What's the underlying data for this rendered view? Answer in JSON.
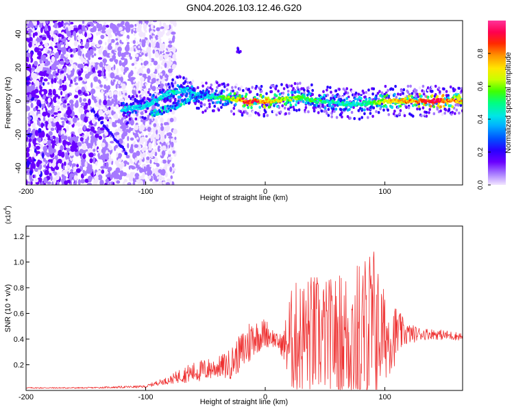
{
  "chart_data": [
    {
      "type": "heatmap",
      "title": "GN04.2026.103.12.46.G20",
      "xlabel": "Height of straight line (km)",
      "ylabel": "Frequency (Hz)",
      "xlim": [
        -200,
        165
      ],
      "ylim": [
        -50,
        48
      ],
      "xticks": [
        -200,
        -100,
        0,
        100
      ],
      "yticks": [
        -40,
        -20,
        0,
        20,
        40
      ],
      "xtick_labels": [
        "-200",
        "-100",
        "0",
        "100"
      ],
      "ytick_labels": [
        "-40",
        "-20",
        "0",
        "20",
        "40"
      ],
      "colorbar": {
        "label": "Normalized spectral amplitude",
        "range": [
          0,
          1
        ],
        "ticks": [
          0,
          0.2,
          0.4,
          0.6,
          0.8
        ],
        "tick_labels": [
          "0.0",
          "0.2",
          "0.4",
          "0.6",
          "0.8"
        ],
        "colors": [
          "#f2e6ff",
          "#a679ff",
          "#6a00ff",
          "#2a00ff",
          "#0050ff",
          "#00b0ff",
          "#00e6e6",
          "#00ff80",
          "#40ff00",
          "#c8ff00",
          "#ffe600",
          "#ff9000",
          "#ff2a00",
          "#ff0050",
          "#ff3399"
        ]
      },
      "ridge": {
        "x": [
          -120,
          -100,
          -80,
          -65,
          -55,
          -45,
          -35,
          -25,
          -15,
          0,
          15,
          30,
          45,
          60,
          75,
          90,
          100,
          120,
          140,
          165
        ],
        "y": [
          -5,
          -3,
          5,
          7,
          2,
          3,
          2,
          1,
          0,
          0,
          1,
          2,
          0,
          -1,
          -2,
          -1,
          0,
          0,
          0,
          0
        ],
        "amplitude": [
          0.45,
          0.45,
          0.5,
          0.45,
          0.4,
          0.5,
          0.6,
          0.75,
          0.95,
          0.85,
          0.7,
          0.6,
          0.55,
          0.5,
          0.5,
          0.6,
          0.75,
          0.85,
          1.0,
          0.8
        ]
      },
      "secondary_ridge": {
        "x": [
          -95,
          -80,
          -65,
          -50
        ],
        "y": [
          -8,
          -4,
          0,
          5
        ]
      },
      "blip": {
        "x": -22,
        "y": 30
      }
    },
    {
      "type": "line",
      "xlabel": "Height of straight line (km)",
      "ylabel": "SNR (10 * v/v)",
      "multiplier_label": "(x10",
      "multiplier_exponent": "4",
      "xlim": [
        -200,
        165
      ],
      "ylim": [
        0,
        1.28
      ],
      "xticks": [
        -200,
        -100,
        0,
        100
      ],
      "yticks": [
        0.2,
        0.4,
        0.6,
        0.8,
        1.0,
        1.2
      ],
      "xtick_labels": [
        "-200",
        "-100",
        "0",
        "100"
      ],
      "ytick_labels": [
        "0.2",
        "0.4",
        "0.6",
        "0.8",
        "1.0",
        "1.2"
      ],
      "series": [
        {
          "name": "SNR",
          "color": "#ee2e2e",
          "x": [
            -200,
            -150,
            -100,
            -90,
            -80,
            -70,
            -60,
            -50,
            -40,
            -30,
            -20,
            -15,
            -10,
            -5,
            0,
            5,
            10,
            15,
            20,
            25,
            30,
            40,
            50,
            60,
            70,
            80,
            85,
            90,
            95,
            100,
            105,
            110,
            115,
            120,
            130,
            140,
            150,
            165
          ],
          "baseline": [
            0.02,
            0.02,
            0.03,
            0.06,
            0.08,
            0.12,
            0.14,
            0.16,
            0.18,
            0.2,
            0.3,
            0.35,
            0.42,
            0.42,
            0.45,
            0.42,
            0.38,
            0.35,
            0.38,
            0.4,
            0.42,
            0.42,
            0.42,
            0.42,
            0.42,
            0.42,
            0.45,
            0.45,
            0.44,
            0.42,
            0.42,
            0.44,
            0.45,
            0.44,
            0.44,
            0.44,
            0.43,
            0.42
          ],
          "amplitude": [
            0.005,
            0.005,
            0.01,
            0.02,
            0.03,
            0.06,
            0.08,
            0.09,
            0.08,
            0.12,
            0.15,
            0.2,
            0.15,
            0.12,
            0.12,
            0.08,
            0.06,
            0.1,
            0.38,
            0.45,
            0.45,
            0.5,
            0.45,
            0.48,
            0.55,
            0.6,
            0.65,
            0.75,
            0.5,
            0.35,
            0.28,
            0.22,
            0.12,
            0.08,
            0.05,
            0.04,
            0.04,
            0.03
          ]
        }
      ]
    }
  ]
}
